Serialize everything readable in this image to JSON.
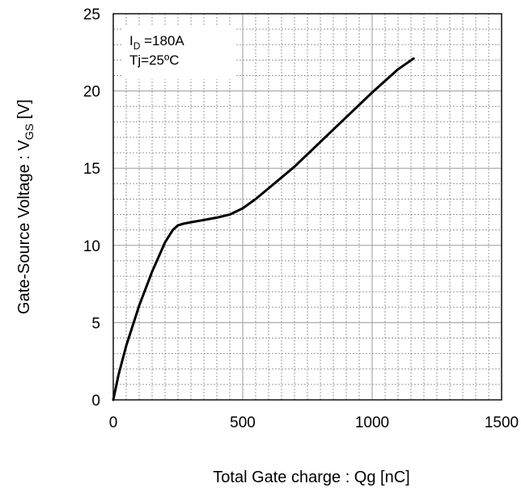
{
  "chart_data": {
    "type": "line",
    "xlabel": "Total Gate charge : Qg  [nC]",
    "ylabel_main": "Gate-Source Voltage : V",
    "ylabel_sub": "GS",
    "ylabel_unit": "  [V]",
    "xlim": [
      0,
      1500
    ],
    "ylim": [
      0,
      25
    ],
    "x_ticks": [
      0,
      500,
      1000,
      1500
    ],
    "y_ticks": [
      0,
      5,
      10,
      15,
      20,
      25
    ],
    "x_minor_step": 50,
    "y_minor_step": 1,
    "grid": true,
    "annotation": {
      "line1_main": "I",
      "line1_sub": "D",
      "line1_rest": " =180A",
      "line2": "Tj=25ºC"
    },
    "series": [
      {
        "x": [
          0,
          20,
          50,
          100,
          150,
          200,
          230,
          250,
          270,
          300,
          350,
          400,
          450,
          500,
          550,
          600,
          700,
          800,
          900,
          1000,
          1100,
          1160
        ],
        "y": [
          0,
          1.6,
          3.5,
          6.1,
          8.3,
          10.2,
          11.0,
          11.3,
          11.4,
          11.5,
          11.65,
          11.8,
          12.0,
          12.4,
          13.0,
          13.7,
          15.1,
          16.7,
          18.3,
          19.9,
          21.4,
          22.1
        ]
      }
    ]
  }
}
